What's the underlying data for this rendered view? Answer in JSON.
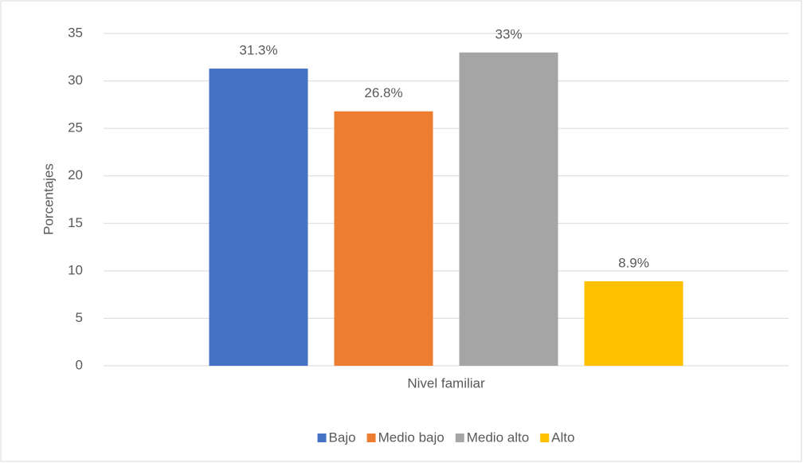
{
  "chart_data": {
    "type": "bar",
    "categories": [
      "Nivel familiar"
    ],
    "series": [
      {
        "name": "Bajo",
        "color": "#4472c4",
        "values": [
          31.3
        ],
        "value_labels": [
          "31.3%"
        ]
      },
      {
        "name": "Medio bajo",
        "color": "#ed7d31",
        "values": [
          26.8
        ],
        "value_labels": [
          "26.8%"
        ]
      },
      {
        "name": "Medio alto",
        "color": "#a5a5a5",
        "values": [
          33
        ],
        "value_labels": [
          "33%"
        ]
      },
      {
        "name": "Alto",
        "color": "#ffc000",
        "values": [
          8.9
        ],
        "value_labels": [
          "8.9%"
        ]
      }
    ],
    "ylabel": "Porcentajes",
    "ylim": [
      0,
      35
    ],
    "yticks": [
      0,
      5,
      10,
      15,
      20,
      25,
      30,
      35
    ],
    "grid": true,
    "legend": "bottom"
  }
}
